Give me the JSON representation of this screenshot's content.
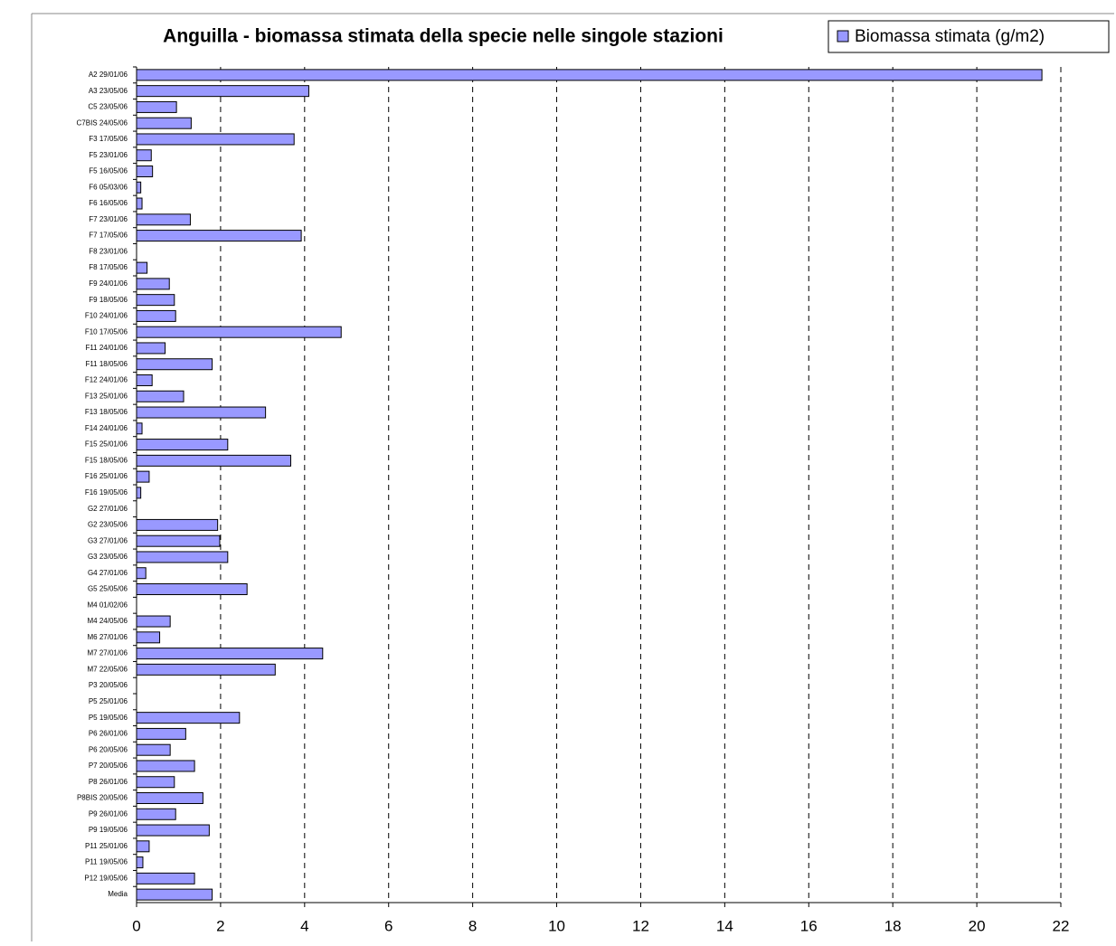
{
  "chart_data": {
    "type": "bar",
    "orientation": "horizontal",
    "title": "Anguilla - biomassa stimata della specie nelle singole stazioni",
    "categories": [
      "A2 29/01/06",
      "A3 23/05/06",
      "C5 23/05/06",
      "C7BIS 24/05/06",
      "F3 17/05/06",
      "F5 23/01/06",
      "F5 16/05/06",
      "F6 05/03/06",
      "F6 16/05/06",
      "F7 23/01/06",
      "F7 17/05/06",
      "F8 23/01/06",
      "F8 17/05/06",
      "F9 24/01/06",
      "F9 18/05/06",
      "F10 24/01/06",
      "F10 17/05/06",
      "F11 24/01/06",
      "F11 18/05/06",
      "F12 24/01/06",
      "F13 25/01/06",
      "F13 18/05/06",
      "F14 24/01/06",
      "F15 25/01/06",
      "F15 18/05/06",
      "F16 25/01/06",
      "F16 19/05/06",
      "G2 27/01/06",
      "G2 23/05/06",
      "G3 27/01/06",
      "G3 23/05/06",
      "G4 27/01/06",
      "G5 25/05/06",
      "M4 01/02/06",
      "M4 24/05/06",
      "M6 27/01/06",
      "M7 27/01/06",
      "M7 22/05/06",
      "P3 20/05/06",
      "P5 25/01/06",
      "P5 19/05/06",
      "P6 26/01/06",
      "P6 20/05/06",
      "P7 20/05/06",
      "P8 26/01/06",
      "P8BIS 20/05/06",
      "P9 26/01/06",
      "P9 19/05/06",
      "P11 25/01/06",
      "P11 19/05/06",
      "P12 19/05/06",
      "Media"
    ],
    "series": [
      {
        "name": "Biomassa stimata (g/m2)",
        "color": "#9999ff",
        "values": [
          21.55,
          4.1,
          0.95,
          1.3,
          3.75,
          0.35,
          0.38,
          0.1,
          0.13,
          1.28,
          3.92,
          0,
          0.25,
          0.78,
          0.9,
          0.93,
          4.87,
          0.68,
          1.8,
          0.37,
          1.12,
          3.07,
          0.13,
          2.17,
          3.67,
          0.3,
          0.1,
          0,
          1.93,
          1.98,
          2.17,
          0.22,
          2.63,
          0,
          0.8,
          0.55,
          4.43,
          3.3,
          0,
          0,
          2.45,
          1.17,
          0.8,
          1.38,
          0.9,
          1.58,
          0.93,
          1.73,
          0.3,
          0.15,
          1.38,
          1.8
        ]
      }
    ],
    "xlim": [
      0,
      22
    ],
    "xticks": [
      0,
      2,
      4,
      6,
      8,
      10,
      12,
      14,
      16,
      18,
      20,
      22
    ],
    "grid": true,
    "legend": "top-right"
  }
}
